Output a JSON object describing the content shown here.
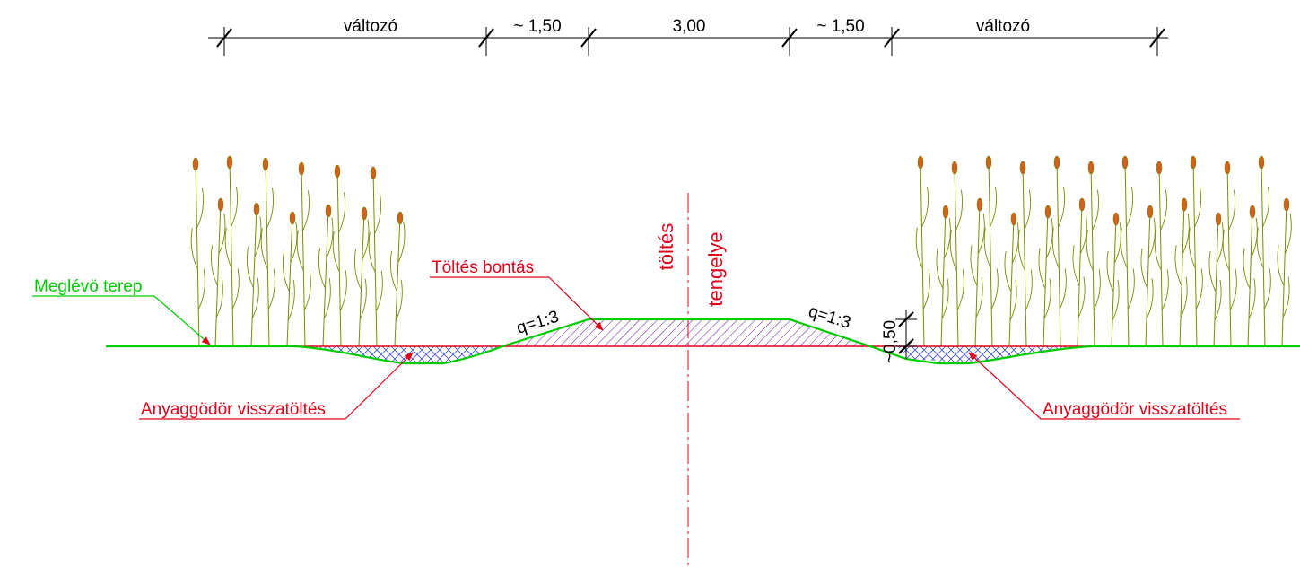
{
  "dimensions": {
    "left_variable": "változó",
    "left_berm": "~ 1,50",
    "crest_width": "3,00",
    "right_berm": "~ 1,50",
    "right_variable": "változó"
  },
  "labels": {
    "existing_ground": "Meglévö terep",
    "embankment_removal": "Töltés bontás",
    "borrow_pit_left": "Anyaggödör visszatöltés",
    "borrow_pit_right": "Anyaggödör visszatöltés",
    "slope_left": "q=1:3",
    "slope_right": "q=1:3",
    "depth": "~0,50",
    "axis_line1": "töltés",
    "axis_line2": "tengelye"
  },
  "colors": {
    "ground_line": "#00cc00",
    "label_red": "#e0001a",
    "hatch_purple": "#6a0dad",
    "hatch_blue": "#3a50d0",
    "reed_stem": "#7a8a00",
    "reed_head": "#d06020",
    "dimension_line": "#000000"
  }
}
